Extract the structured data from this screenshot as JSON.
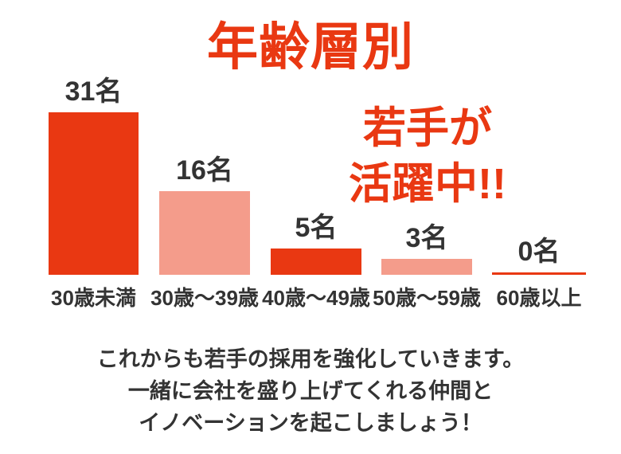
{
  "header": {
    "title": "年齢層別"
  },
  "annotation": {
    "line1": "若手が",
    "line2": "活躍中!!",
    "full_text": "若手が活躍中!!"
  },
  "chart_data": {
    "type": "bar",
    "title": "年齢層別",
    "categories": [
      "30歳未満",
      "30歳〜39歳",
      "40歳〜49歳",
      "50歳〜59歳",
      "60歳以上"
    ],
    "values": [
      31,
      16,
      5,
      3,
      0
    ],
    "value_labels": [
      "31名",
      "16名",
      "5名",
      "3名",
      "0名"
    ],
    "bar_colors": [
      "#E93812",
      "#F49C8B",
      "#E93812",
      "#F49C8B",
      "#E93812"
    ],
    "unit": "名",
    "ylim": [
      0,
      31
    ],
    "grid": false,
    "legend": false,
    "annotation": "若手が活躍中!!",
    "zero_bar_style": "thin-red-line"
  },
  "footer": {
    "lines": [
      "これからも若手の採用を強化していきます。",
      "一緒に会社を盛り上げてくれる仲間と",
      "イノベーションを起こしましょう！"
    ]
  },
  "colors": {
    "accent_red": "#E93812",
    "accent_pink": "#F49C8B",
    "text_dark": "#333333",
    "background": "#FFFFFF"
  }
}
